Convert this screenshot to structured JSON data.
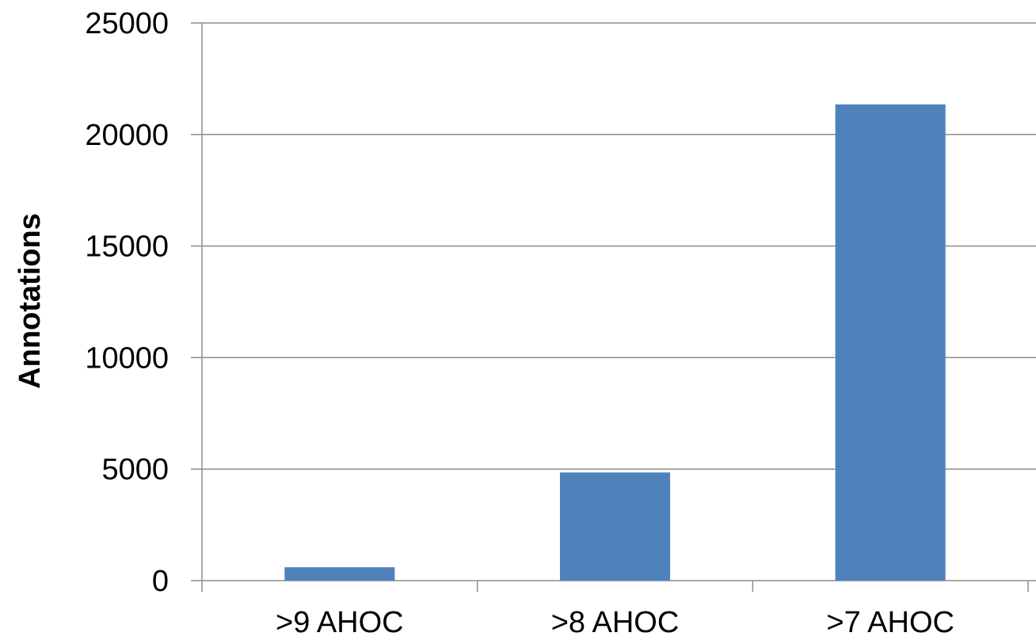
{
  "chart_data": {
    "type": "bar",
    "categories": [
      ">9 AHOC",
      ">8 AHOC",
      ">7 AHOC"
    ],
    "values": [
      600,
      4850,
      21350
    ],
    "title": "",
    "xlabel": "",
    "ylabel": "Annotations",
    "ylim": [
      0,
      25000
    ],
    "yticks": [
      0,
      5000,
      10000,
      15000,
      20000,
      25000
    ],
    "grid": true,
    "legend": "none",
    "colors": {
      "bar": "#4f81bd",
      "grid": "#8c8c8c",
      "axis": "#8c8c8c",
      "text": "#000000"
    }
  }
}
